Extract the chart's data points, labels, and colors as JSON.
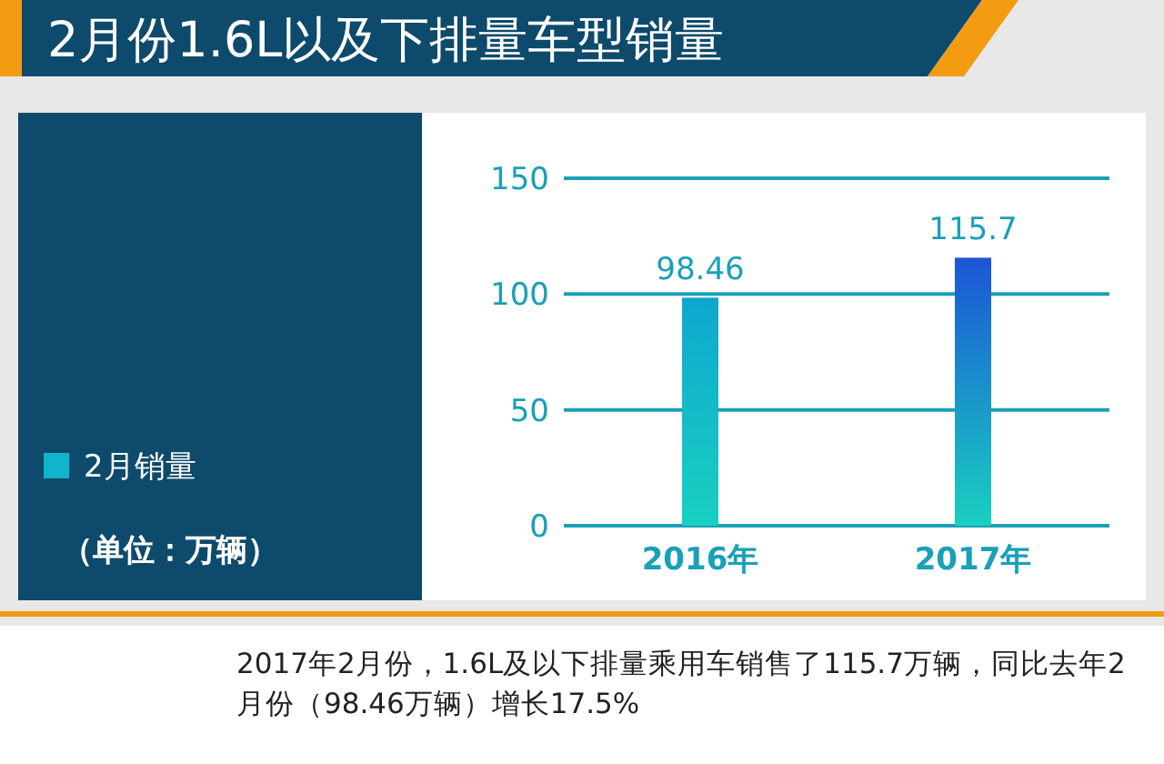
{
  "chart_data": {
    "type": "bar",
    "title": "2月份1.6L以及下排量车型销量",
    "categories": [
      "2016年",
      "2017年"
    ],
    "series": [
      {
        "name": "2月销量",
        "color": "#10b4cc",
        "colors": [
          "#0ea7cf",
          "#1b55d6"
        ],
        "values": [
          98.46,
          115.7
        ]
      }
    ],
    "ylim": [
      0,
      150
    ],
    "yticks": [
      0,
      50,
      100,
      150
    ],
    "grid": "y",
    "legend": "left",
    "data_labels": true,
    "annotations": [
      "（单位：万辆）",
      "2017年2月份，1.6L及以下排量乘用车销售了115.7万辆，同比去年2月份（98.46万辆）增长17.5%"
    ]
  }
}
